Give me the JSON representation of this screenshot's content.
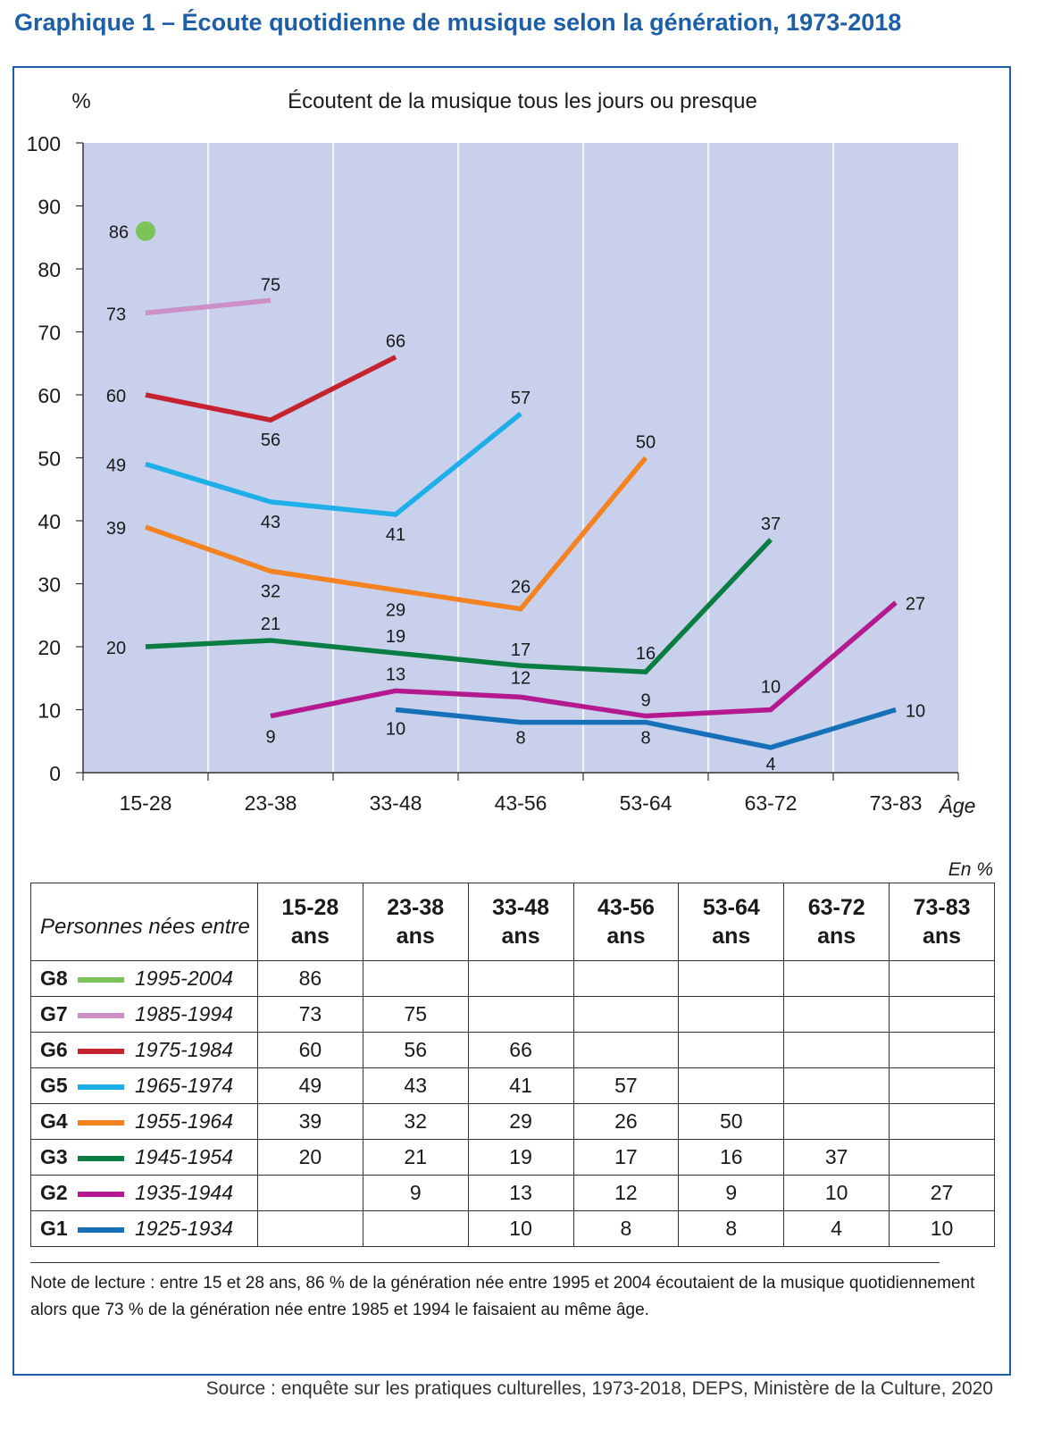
{
  "title": "Graphique 1 – Écoute quotidienne de musique selon la génération, 1973-2018",
  "chart_data": {
    "type": "line",
    "title": "Écoutent de la musique tous les jours ou presque",
    "ylabel": "%",
    "xlabel": "Âge",
    "ylim": [
      0,
      100
    ],
    "yticks": [
      "0",
      "10",
      "20",
      "30",
      "40",
      "50",
      "60",
      "70",
      "80",
      "90",
      "100"
    ],
    "categories": [
      "15-28",
      "23-38",
      "33-48",
      "43-56",
      "53-64",
      "63-72",
      "73-83"
    ],
    "grid": true,
    "series": [
      {
        "name": "G8",
        "color": "#7cc35a",
        "values": [
          86,
          null,
          null,
          null,
          null,
          null,
          null
        ]
      },
      {
        "name": "G7",
        "color": "#cc8fc6",
        "values": [
          73,
          75,
          null,
          null,
          null,
          null,
          null
        ]
      },
      {
        "name": "G6",
        "color": "#c5232f",
        "values": [
          60,
          56,
          66,
          null,
          null,
          null,
          null
        ]
      },
      {
        "name": "G5",
        "color": "#1eaee8",
        "values": [
          49,
          43,
          41,
          57,
          null,
          null,
          null
        ]
      },
      {
        "name": "G4",
        "color": "#f58220",
        "values": [
          39,
          32,
          29,
          26,
          50,
          null,
          null
        ]
      },
      {
        "name": "G3",
        "color": "#0a7d43",
        "values": [
          20,
          21,
          19,
          17,
          16,
          37,
          null
        ]
      },
      {
        "name": "G2",
        "color": "#b4198f",
        "values": [
          null,
          9,
          13,
          12,
          9,
          10,
          27
        ]
      },
      {
        "name": "G1",
        "color": "#1570b8",
        "values": [
          null,
          null,
          10,
          8,
          8,
          4,
          10
        ]
      }
    ],
    "plot_background": "#c8d0ec"
  },
  "table": {
    "unit_note": "En %",
    "lead_label": "Personnes nées entre",
    "age_headers": [
      {
        "range": "15-28",
        "suffix": "ans"
      },
      {
        "range": "23-38",
        "suffix": "ans"
      },
      {
        "range": "33-48",
        "suffix": "ans"
      },
      {
        "range": "43-56",
        "suffix": "ans"
      },
      {
        "range": "53-64",
        "suffix": "ans"
      },
      {
        "range": "63-72",
        "suffix": "ans"
      },
      {
        "range": "73-83",
        "suffix": "ans"
      }
    ],
    "rows": [
      {
        "code": "G8",
        "years": "1995-2004",
        "color": "#7cc35a",
        "cells": [
          "86",
          "",
          "",
          "",
          "",
          "",
          ""
        ]
      },
      {
        "code": "G7",
        "years": "1985-1994",
        "color": "#cc8fc6",
        "cells": [
          "73",
          "75",
          "",
          "",
          "",
          "",
          ""
        ]
      },
      {
        "code": "G6",
        "years": "1975-1984",
        "color": "#c5232f",
        "cells": [
          "60",
          "56",
          "66",
          "",
          "",
          "",
          ""
        ]
      },
      {
        "code": "G5",
        "years": "1965-1974",
        "color": "#1eaee8",
        "cells": [
          "49",
          "43",
          "41",
          "57",
          "",
          "",
          ""
        ]
      },
      {
        "code": "G4",
        "years": "1955-1964",
        "color": "#f58220",
        "cells": [
          "39",
          "32",
          "29",
          "26",
          "50",
          "",
          ""
        ]
      },
      {
        "code": "G3",
        "years": "1945-1954",
        "color": "#0a7d43",
        "cells": [
          "20",
          "21",
          "19",
          "17",
          "16",
          "37",
          ""
        ]
      },
      {
        "code": "G2",
        "years": "1935-1944",
        "color": "#b4198f",
        "cells": [
          "",
          "9",
          "13",
          "12",
          "9",
          "10",
          "27"
        ]
      },
      {
        "code": "G1",
        "years": "1925-1934",
        "color": "#1570b8",
        "cells": [
          "",
          "",
          "10",
          "8",
          "8",
          "4",
          "10"
        ]
      }
    ]
  },
  "note": "Note de lecture : entre 15 et 28 ans, 86 % de la génération née entre 1995 et 2004 écoutaient de la musique quotidiennement alors que 73 % de la génération née entre 1985 et 1994 le faisaient au même âge.",
  "source": "Source : enquête sur les pratiques culturelles, 1973-2018, DEPS, Ministère de la Culture, 2020"
}
